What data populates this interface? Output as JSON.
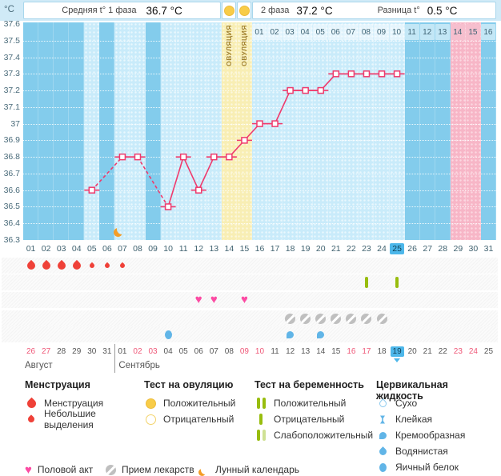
{
  "colors": {
    "chart_bg": "#83ccec",
    "measured_column": "#c9ebfa",
    "ovulation_column": "#f8eeb4",
    "expected_period_column": "#f7b6c7",
    "temp_line": "#ef3a6c",
    "today_highlight": "#4db7ea",
    "weekend_date": "#ef5878",
    "menstruation": "#ef4138",
    "heart": "#fc4ba3",
    "pregnancy_test_bar": "#98bd0e",
    "pregnancy_test_weak_bar": "#cfe194",
    "fluid_blue": "#61b5e7",
    "ovulation_test_circle": "#f8cc48",
    "moon": "#f49d26"
  },
  "header": {
    "unit": "°C",
    "avg1_label": "Средняя t° 1 фаза",
    "avg1_value": "36.7 °C",
    "phase2_label": "2 фаза",
    "phase2_value": "37.2 °C",
    "diff_label": "Разница t°",
    "diff_value": "0.5 °C",
    "ovulation_column_label": "ОВУЛЯЦИЯ"
  },
  "chart_data": {
    "type": "line",
    "title": "Basal body temperature cycle chart",
    "ylabel": "°C",
    "ylim": [
      36.3,
      37.6
    ],
    "y_ticks": [
      "37.6",
      "37.5",
      "37.4",
      "37.3",
      "37.2",
      "37.1",
      "37",
      "36.9",
      "36.8",
      "36.7",
      "36.6",
      "36.5",
      "36.4",
      "36.3"
    ],
    "grid": "dotted-white-horizontal",
    "x_days": 31,
    "temps": [
      {
        "day": 5,
        "temp": 36.6
      },
      {
        "day": 7,
        "temp": 36.8
      },
      {
        "day": 8,
        "temp": 36.8
      },
      {
        "day": 10,
        "temp": 36.5
      },
      {
        "day": 11,
        "temp": 36.8
      },
      {
        "day": 12,
        "temp": 36.6
      },
      {
        "day": 13,
        "temp": 36.8
      },
      {
        "day": 14,
        "temp": 36.8
      },
      {
        "day": 15,
        "temp": 36.9
      },
      {
        "day": 16,
        "temp": 37.0
      },
      {
        "day": 17,
        "temp": 37.0
      },
      {
        "day": 18,
        "temp": 37.2
      },
      {
        "day": 19,
        "temp": 37.2
      },
      {
        "day": 20,
        "temp": 37.2
      },
      {
        "day": 21,
        "temp": 37.3
      },
      {
        "day": 22,
        "temp": 37.3
      },
      {
        "day": 23,
        "temp": 37.3
      },
      {
        "day": 24,
        "temp": 37.3
      },
      {
        "day": 25,
        "temp": 37.3
      }
    ],
    "dashed_gap_pairs": [
      [
        5,
        7
      ],
      [
        8,
        10
      ]
    ],
    "ovulation_days": [
      14,
      15
    ],
    "expected_period_days": [
      29,
      30
    ]
  },
  "phase2_axis": {
    "labels": [
      "01",
      "02",
      "03",
      "04",
      "05",
      "06",
      "07",
      "08",
      "09",
      "10",
      "11",
      "12",
      "13",
      "14",
      "15",
      "16"
    ],
    "pink_labels": [
      14,
      15
    ]
  },
  "cycle_axis": {
    "labels": [
      "01",
      "02",
      "03",
      "04",
      "05",
      "06",
      "07",
      "08",
      "09",
      "10",
      "11",
      "12",
      "13",
      "14",
      "15",
      "16",
      "17",
      "18",
      "19",
      "20",
      "21",
      "22",
      "23",
      "24",
      "25",
      "26",
      "27",
      "28",
      "29",
      "30",
      "31"
    ],
    "today_day": 25
  },
  "events": {
    "menstruation_days": [
      1,
      2,
      3,
      4
    ],
    "spotting_days": [
      5,
      6,
      7
    ],
    "pregnancy_test_negative_days": [
      23,
      25
    ],
    "intercourse_days": [
      12,
      13,
      15
    ],
    "medication_days": [
      18,
      19,
      20,
      21,
      22,
      23,
      24
    ],
    "cervical_fluid": [
      {
        "day": 10,
        "type": "egg"
      },
      {
        "day": 18,
        "type": "creamy"
      },
      {
        "day": 20,
        "type": "creamy"
      }
    ],
    "moon_calendar_day": 7
  },
  "calendar": {
    "dates": [
      {
        "label": "26",
        "red": true
      },
      {
        "label": "27",
        "red": true
      },
      {
        "label": "28"
      },
      {
        "label": "29"
      },
      {
        "label": "30"
      },
      {
        "label": "31"
      },
      {
        "label": "01"
      },
      {
        "label": "02",
        "red": true
      },
      {
        "label": "03",
        "red": true
      },
      {
        "label": "04"
      },
      {
        "label": "05"
      },
      {
        "label": "06"
      },
      {
        "label": "07"
      },
      {
        "label": "08"
      },
      {
        "label": "09",
        "red": true
      },
      {
        "label": "10",
        "red": true
      },
      {
        "label": "11"
      },
      {
        "label": "12"
      },
      {
        "label": "13"
      },
      {
        "label": "14"
      },
      {
        "label": "15"
      },
      {
        "label": "16",
        "red": true
      },
      {
        "label": "17",
        "red": true
      },
      {
        "label": "18"
      },
      {
        "label": "19",
        "today": true
      },
      {
        "label": "20"
      },
      {
        "label": "21"
      },
      {
        "label": "22"
      },
      {
        "label": "23",
        "red": true
      },
      {
        "label": "24",
        "red": true
      },
      {
        "label": "25"
      }
    ],
    "months": [
      {
        "label": "Август",
        "starts_at_day": 1
      },
      {
        "label": "Сентябрь",
        "starts_at_day": 7
      }
    ]
  },
  "legend": {
    "groups": [
      {
        "title": "Менструация",
        "items": [
          {
            "icon": "menstruation-drop",
            "label": "Менструация"
          },
          {
            "icon": "spotting-drop",
            "label": "Небольшие выделения"
          }
        ]
      },
      {
        "title": "Тест на овуляцию",
        "items": [
          {
            "icon": "ovulation-test-positive",
            "label": "Положительный"
          },
          {
            "icon": "ovulation-test-negative",
            "label": "Отрицательный"
          }
        ]
      },
      {
        "title": "Тест на беременность",
        "items": [
          {
            "icon": "pregnancy-test-positive",
            "label": "Положительный"
          },
          {
            "icon": "pregnancy-test-negative",
            "label": "Отрицательный"
          },
          {
            "icon": "pregnancy-test-weak-positive",
            "label": "Слабоположительный"
          }
        ]
      },
      {
        "title": "Цервикальная жидкость",
        "items": [
          {
            "icon": "fluid-dry",
            "label": "Сухо"
          },
          {
            "icon": "fluid-sticky",
            "label": "Клейкая"
          },
          {
            "icon": "fluid-creamy",
            "label": "Кремообразная"
          },
          {
            "icon": "fluid-watery",
            "label": "Водянистая"
          },
          {
            "icon": "fluid-eggwhite",
            "label": "Яичный белок"
          }
        ]
      }
    ],
    "footer": [
      {
        "icon": "intercourse-heart",
        "label": "Половой акт"
      },
      {
        "icon": "medication-pill",
        "label": "Прием лекарств"
      },
      {
        "icon": "moon-calendar",
        "label": "Лунный календарь"
      }
    ]
  }
}
